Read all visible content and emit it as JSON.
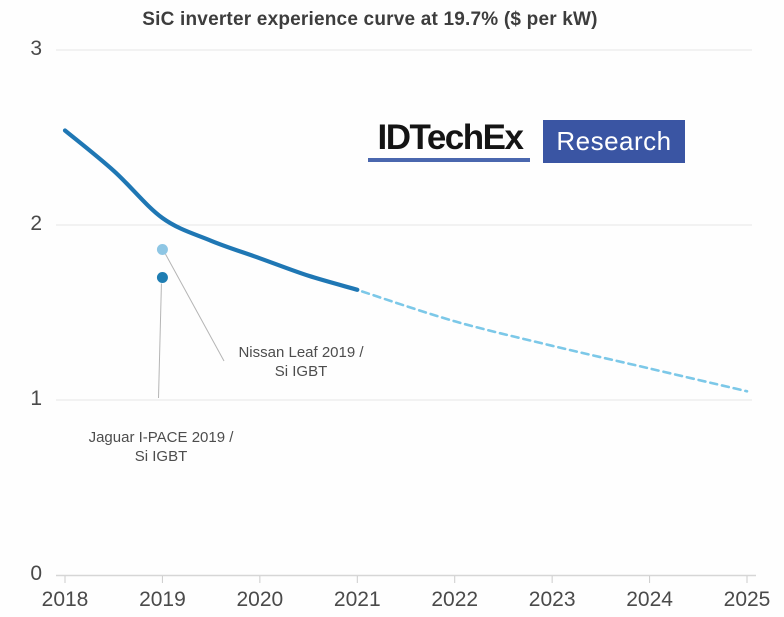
{
  "figure": {
    "title": "SiC inverter experience curve at 19.7% ($ per kW)"
  },
  "logo": {
    "brand": "IDTechEx",
    "suffix": "Research",
    "underline_color": "#4a67ae",
    "box_color": "#3a55a3"
  },
  "annotations": [
    {
      "id": "nissan-leaf",
      "line1": "Nissan Leaf 2019 /",
      "line2": "Si IGBT"
    },
    {
      "id": "jaguar-ipace",
      "line1": "Jaguar I-PACE 2019 /",
      "line2": "Si IGBT"
    }
  ],
  "chart_data": {
    "type": "line",
    "title": "SiC inverter experience curve at 19.7% ($ per kW)",
    "ylabel": "$ per kW",
    "xlim": [
      2018,
      2025
    ],
    "ylim": [
      0,
      3
    ],
    "x_ticks": [
      "2018",
      "2019",
      "2020",
      "2021",
      "2022",
      "2023",
      "2024",
      "2025"
    ],
    "y_ticks": [
      "0",
      "1",
      "2",
      "3"
    ],
    "grid": "horizontal",
    "grid_color": "#e7e7e7",
    "axis_color": "#d6d6d6",
    "legend": "none",
    "series": [
      {
        "name": "SiC inverter experience curve (actual)",
        "style": "solid",
        "color": "#1f77b4",
        "stroke_width": 4.2,
        "x": [
          2018,
          2018.5,
          2019,
          2019.5,
          2020,
          2020.5,
          2021
        ],
        "y": [
          2.54,
          2.31,
          2.04,
          1.91,
          1.81,
          1.71,
          1.63
        ]
      },
      {
        "name": "SiC inverter experience curve (forecast)",
        "style": "dashed",
        "color": "#7cc8e8",
        "stroke_width": 2.6,
        "x": [
          2021.05,
          2022,
          2023,
          2024,
          2025
        ],
        "y": [
          1.62,
          1.45,
          1.31,
          1.18,
          1.05
        ]
      }
    ],
    "points": [
      {
        "name": "Nissan Leaf 2019 / Si IGBT",
        "x": 2019,
        "y": 1.86,
        "color": "#8ec6e4",
        "radius": 5.5
      },
      {
        "name": "Jaguar I-PACE 2019 / Si IGBT",
        "x": 2019,
        "y": 1.7,
        "color": "#1e7db2",
        "radius": 5.5
      }
    ],
    "leader_line_color": "#b5b5b5"
  }
}
